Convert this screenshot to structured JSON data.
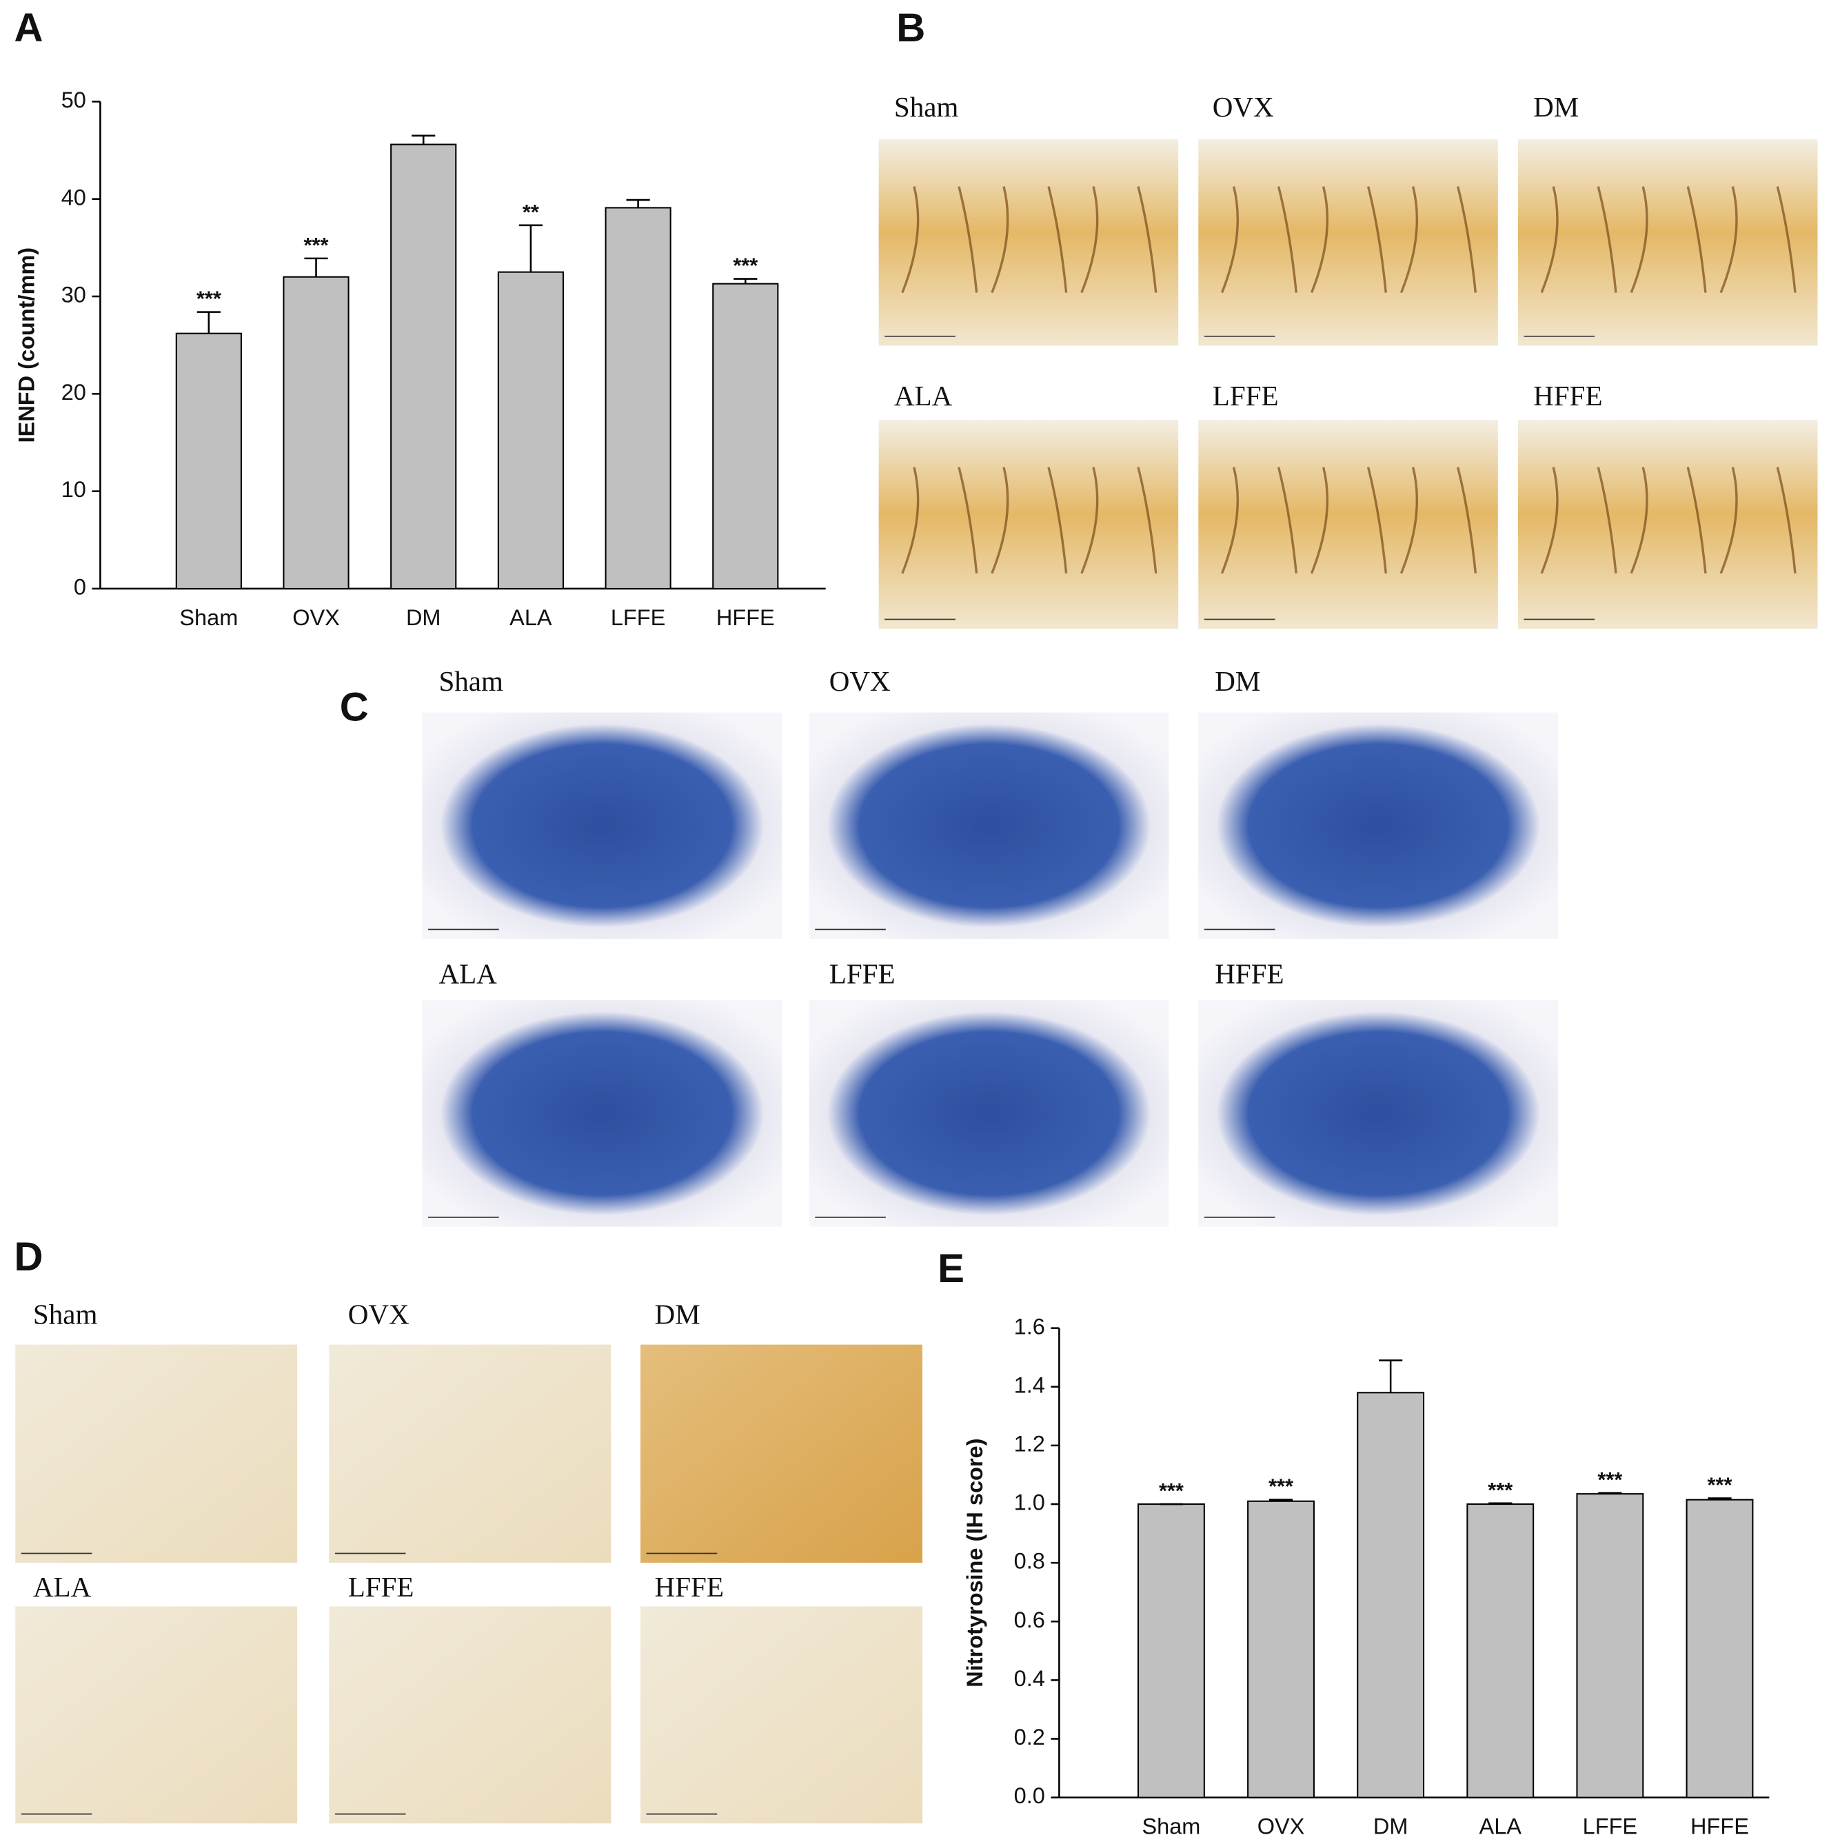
{
  "panel_labels": [
    "A",
    "B",
    "C",
    "D",
    "E"
  ],
  "micrographs": {
    "B": [
      "Sham",
      "OVX",
      "DM",
      "ALA",
      "LFFE",
      "HFFE"
    ],
    "C": [
      "Sham",
      "OVX",
      "DM",
      "ALA",
      "LFFE",
      "HFFE"
    ],
    "D": [
      "Sham",
      "OVX",
      "DM",
      "ALA",
      "LFFE",
      "HFFE"
    ]
  },
  "chart_data": [
    {
      "type": "bar",
      "y_label": "IENFD (count/mm)",
      "categories": [
        "Sham",
        "OVX",
        "DM",
        "ALA",
        "LFFE",
        "HFFE"
      ],
      "values": [
        26.2,
        32.0,
        45.6,
        32.5,
        39.1,
        31.3
      ],
      "errors": [
        2.2,
        1.9,
        0.9,
        4.8,
        0.8,
        0.5
      ],
      "annotations": [
        "***",
        "***",
        null,
        "**",
        null,
        "***"
      ],
      "color": "#c0c0c0",
      "ylim": [
        0,
        50
      ],
      "yticks": [
        0,
        10,
        20,
        30,
        40,
        50
      ]
    },
    {
      "type": "bar",
      "y_label": "Nitrotyrosine (IH score)",
      "categories": [
        "Sham",
        "OVX",
        "DM",
        "ALA",
        "LFFE",
        "HFFE"
      ],
      "values": [
        1.0,
        1.01,
        1.38,
        1.0,
        1.035,
        1.015
      ],
      "errors": [
        0.0,
        0.005,
        0.11,
        0.003,
        0.003,
        0.005
      ],
      "annotations": [
        "***",
        "***",
        null,
        "***",
        "***",
        "***"
      ],
      "color": "#c0c0c0",
      "ylim": [
        0,
        1.6
      ],
      "yticks": [
        {
          "value": 0,
          "label": "0.0"
        },
        0.2,
        0.4,
        0.6,
        0.8,
        {
          "value": 1,
          "label": "1.0"
        },
        1.2,
        1.4,
        1.6
      ]
    }
  ]
}
